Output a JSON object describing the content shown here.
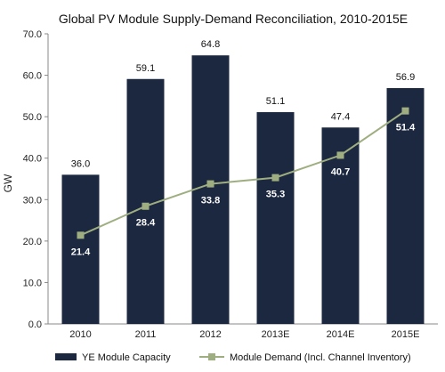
{
  "chart_data": {
    "type": "bar",
    "title": "Global PV Module Supply-Demand Reconciliation, 2010-2015E",
    "xlabel": "",
    "ylabel": "GW",
    "categories": [
      "2010",
      "2011",
      "2012",
      "2013E",
      "2014E",
      "2015E"
    ],
    "ylim": [
      0,
      70
    ],
    "yticks": [
      "0.0",
      "10.0",
      "20.0",
      "30.0",
      "40.0",
      "50.0",
      "60.0",
      "70.0"
    ],
    "grid": false,
    "legend_position": "bottom",
    "series": [
      {
        "name": "YE Module Capacity",
        "type": "bar",
        "color": "#1c2840",
        "values": [
          36.0,
          59.1,
          64.8,
          51.1,
          47.4,
          56.9
        ],
        "labels": [
          "36.0",
          "59.1",
          "64.8",
          "51.1",
          "47.4",
          "56.9"
        ]
      },
      {
        "name": "Module Demand (Incl. Channel Inventory)",
        "type": "line",
        "color": "#9fae80",
        "values": [
          21.4,
          28.4,
          33.8,
          35.3,
          40.7,
          51.4
        ],
        "labels": [
          "21.4",
          "28.4",
          "33.8",
          "35.3",
          "40.7",
          "51.4"
        ]
      }
    ]
  }
}
